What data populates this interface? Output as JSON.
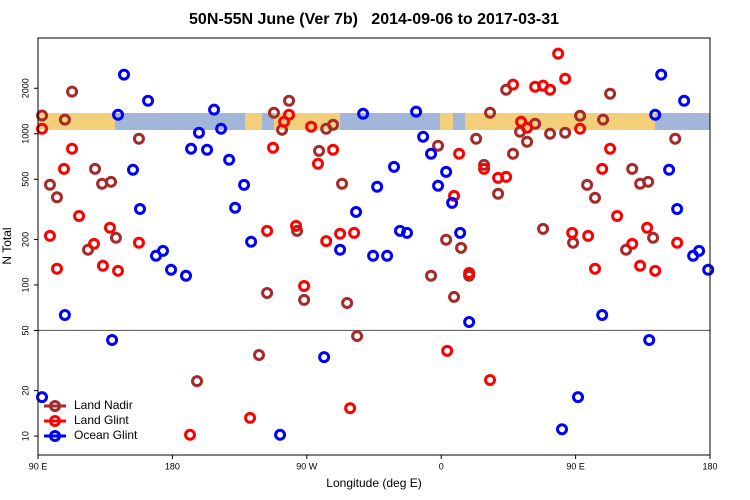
{
  "chart_data": {
    "type": "scatter",
    "title": "50N-55N June (Ver 7b)   2014-09-06 to 2017-03-31",
    "x_label": "Longitude (deg E)",
    "y_label": "N Total",
    "xlim": [
      90,
      540
    ],
    "xticks": [
      {
        "value": 90,
        "label": "90 E"
      },
      {
        "value": 180,
        "label": "180"
      },
      {
        "value": 270,
        "label": "90 W"
      },
      {
        "value": 360,
        "label": "0"
      },
      {
        "value": 450,
        "label": "90 E"
      },
      {
        "value": 540,
        "label": "180"
      }
    ],
    "ylim": [
      7.5,
      4300
    ],
    "yticks": [
      10,
      20,
      50,
      100,
      200,
      500,
      1000,
      2000
    ],
    "log_y": true,
    "hline": 50,
    "legend": "bottom-left",
    "series": [
      {
        "name": "Land Nadir",
        "color": "#a52a2a",
        "x": [
          92.7,
          98,
          102.7,
          108,
          112.8,
          123.5,
          128.2,
          132.9,
          138.9,
          142.2,
          157.6,
          196.5,
          238,
          243.4,
          248,
          253.4,
          258.1,
          263.5,
          268.2,
          278.2,
          283,
          287.6,
          293.6,
          297,
          303.7,
          353.2,
          357.9,
          363.3,
          368.6,
          373.3,
          378.7,
          383.4,
          388.7,
          392.7,
          398.1,
          403.5,
          408.1,
          412.8,
          417.5,
          422.9,
          428.2,
          432.9,
          443,
          448.3,
          453,
          457.7,
          463,
          468.4,
          473.1,
          483.8,
          487.9,
          493.2,
          498.6,
          501.9,
          516.7
        ],
        "values": [
          1320,
          460,
          380,
          1240,
          1900,
          171,
          586,
          467,
          481,
          205,
          927,
          23.1,
          34.4,
          88.5,
          1377,
          1062,
          1654,
          228,
          79.6,
          771,
          1080,
          1148,
          467,
          76,
          45.9,
          115,
          833,
          199,
          83.3,
          176,
          115,
          927,
          623,
          1377,
          401,
          1955,
          738,
          1031,
          885,
          1164,
          235,
          1000,
          1016,
          190,
          1315,
          459,
          377,
          1240,
          1840,
          171,
          586,
          467,
          481,
          205,
          927
        ]
      },
      {
        "name": "Land Glint",
        "color": "#ff0000",
        "x": [
          92.7,
          98,
          102.7,
          107.4,
          112.8,
          117.5,
          127.5,
          133.5,
          138.2,
          143.6,
          157.6,
          191.8,
          232,
          243.4,
          247.4,
          254.8,
          258.1,
          262.8,
          268.2,
          272.9,
          277.5,
          283,
          287.6,
          292.3,
          299,
          301.7,
          364,
          368.6,
          372,
          378.7,
          388.7,
          392.7,
          398.1,
          403.5,
          408.1,
          413.5,
          417.5,
          422.9,
          428.2,
          432.9,
          438.3,
          443,
          447.7,
          453,
          458.4,
          463,
          467.8,
          473.1,
          477.8,
          487.9,
          493.2,
          497.9,
          503.3,
          518
        ],
        "values": [
          1080,
          211,
          128,
          586,
          796,
          286,
          187,
          134,
          239,
          124,
          190,
          10.2,
          13.2,
          228,
          808,
          1200,
          1336,
          246,
          98.4,
          1112,
          633,
          195,
          784,
          218,
          15.3,
          221,
          36.6,
          388,
          738,
          120,
          586,
          23.5,
          511,
          519,
          2113,
          1200,
          1096,
          2047,
          2080,
          1955,
          3388,
          2312,
          221,
          1080,
          211,
          128,
          586,
          796,
          286,
          187,
          134,
          239,
          124,
          190
        ]
      },
      {
        "name": "Ocean Glint",
        "color": "#0000ff",
        "x": [
          92.7,
          108,
          139.6,
          143.6,
          147.6,
          153.6,
          158.3,
          163.7,
          169,
          173.7,
          179.1,
          189.1,
          192.5,
          197.8,
          203.2,
          207.9,
          212.6,
          218,
          222,
          228,
          232.7,
          252.1,
          281.6,
          292.3,
          303,
          307.7,
          314.4,
          317.1,
          323.8,
          328.4,
          332.4,
          337.1,
          343.2,
          347.9,
          353.2,
          357.9,
          363.3,
          367.3,
          372.7,
          378.7,
          440.9,
          451.6,
          467.8,
          499.3,
          503.3,
          507.3,
          512.6,
          518,
          522.7,
          528.7,
          532.7,
          538.8
        ],
        "values": [
          18.1,
          63.3,
          43.2,
          1336,
          2460,
          578,
          318,
          1654,
          156,
          168,
          126,
          115,
          796,
          1016,
          784,
          1443,
          1080,
          673,
          324,
          459,
          193,
          10.2,
          33.3,
          171,
          304,
          1357,
          156,
          446,
          156,
          604,
          228,
          221,
          1400,
          955,
          738,
          453,
          560,
          349,
          221,
          56.9,
          11.1,
          18.1,
          63.3,
          43.2,
          1336,
          2460,
          578,
          318,
          1654,
          156,
          168,
          126
        ]
      }
    ]
  }
}
